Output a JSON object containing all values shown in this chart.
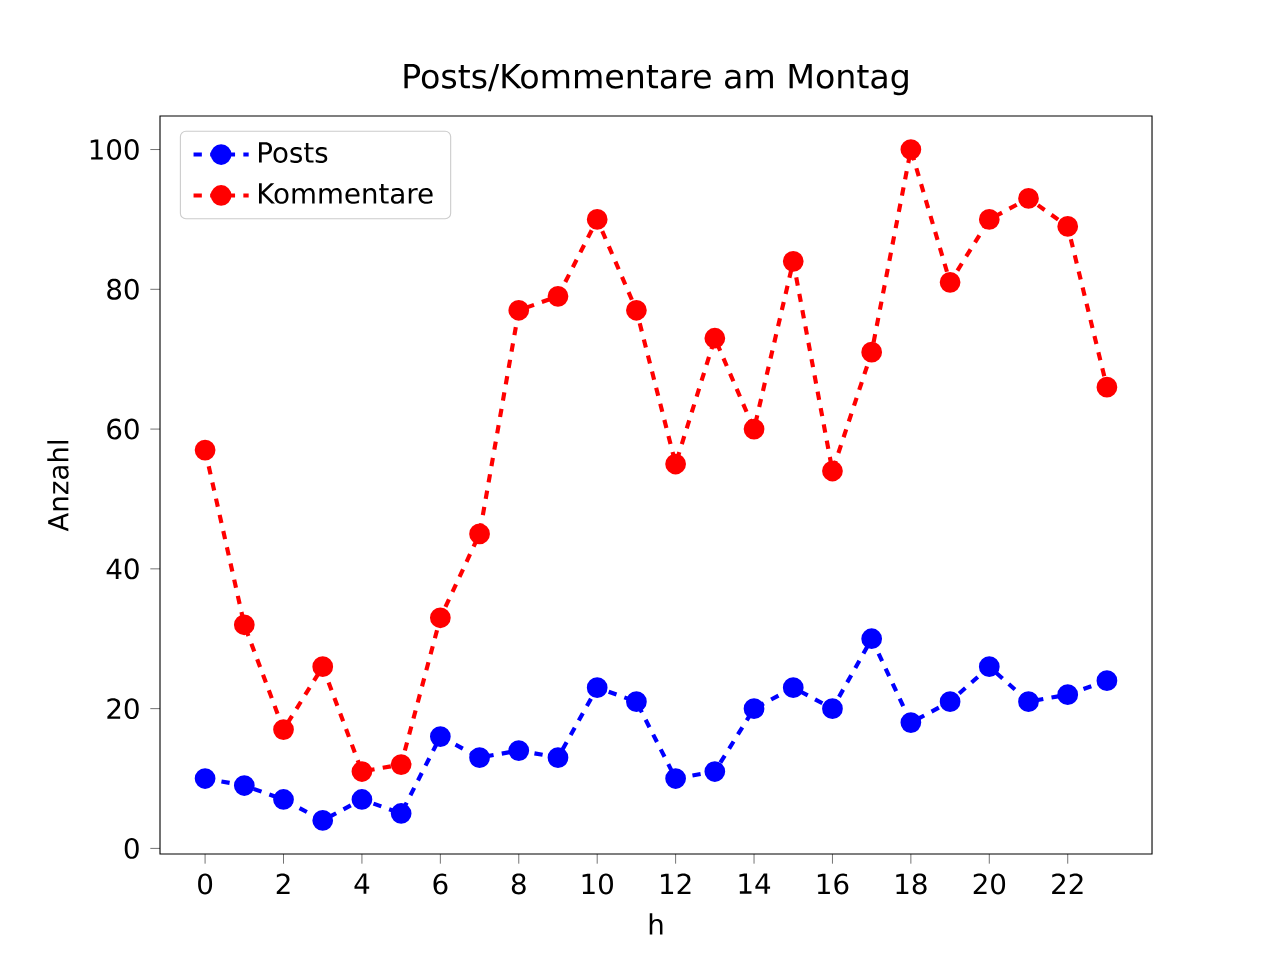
{
  "chart_data": {
    "type": "line",
    "title": "Posts/Kommentare am Montag",
    "xlabel": "h",
    "ylabel": "Anzahl",
    "x": [
      0,
      1,
      2,
      3,
      4,
      5,
      6,
      7,
      8,
      9,
      10,
      11,
      12,
      13,
      14,
      15,
      16,
      17,
      18,
      19,
      20,
      21,
      22,
      23
    ],
    "series": [
      {
        "name": "Posts",
        "color": "#0000ff",
        "values": [
          10,
          9,
          7,
          4,
          7,
          5,
          16,
          13,
          14,
          13,
          23,
          21,
          10,
          11,
          20,
          23,
          20,
          30,
          18,
          21,
          26,
          21,
          22,
          24
        ]
      },
      {
        "name": "Kommentare",
        "color": "#ff0000",
        "values": [
          57,
          32,
          17,
          26,
          11,
          12,
          33,
          45,
          77,
          79,
          90,
          77,
          55,
          73,
          60,
          84,
          54,
          71,
          100,
          81,
          90,
          93,
          89,
          66
        ]
      }
    ],
    "xlim": [
      -1.15,
      24.15
    ],
    "ylim": [
      -0.8,
      104.8
    ],
    "xticks": [
      0,
      2,
      4,
      6,
      8,
      10,
      12,
      14,
      16,
      18,
      20,
      22
    ],
    "yticks": [
      0,
      20,
      40,
      60,
      80,
      100
    ],
    "legend": "top left",
    "marker": "circle",
    "line_style": "dashed",
    "grid": false
  }
}
